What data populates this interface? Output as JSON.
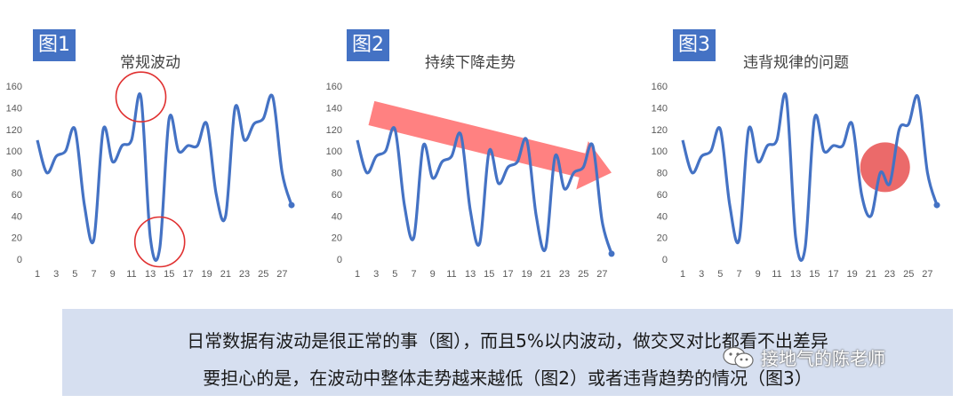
{
  "chart_data": [
    {
      "type": "line",
      "label": "图1",
      "title": "常规波动",
      "categories": [
        1,
        2,
        3,
        4,
        5,
        6,
        7,
        8,
        9,
        10,
        11,
        12,
        13,
        14,
        15,
        16,
        17,
        18,
        19,
        20,
        21,
        22,
        23,
        24,
        25,
        26,
        27,
        28
      ],
      "x_tick_labels": [
        "1",
        "3",
        "5",
        "7",
        "9",
        "11",
        "13",
        "15",
        "17",
        "19",
        "21",
        "23",
        "25",
        "27"
      ],
      "y_ticks": [
        0,
        20,
        40,
        60,
        80,
        100,
        120,
        140,
        160
      ],
      "ylim": [
        0,
        160
      ],
      "series": [
        {
          "values": [
            110,
            80,
            95,
            100,
            120,
            50,
            18,
            120,
            90,
            105,
            110,
            150,
            20,
            10,
            130,
            100,
            105,
            105,
            125,
            60,
            40,
            140,
            110,
            125,
            130,
            150,
            80,
            50
          ]
        }
      ],
      "color": "#4472c4",
      "annotations": [
        {
          "shape": "circle",
          "at_x": 12,
          "at_y": 150,
          "color": "#e03030"
        },
        {
          "shape": "circle",
          "at_x": 14,
          "at_y": 16,
          "color": "#e03030"
        }
      ]
    },
    {
      "type": "line",
      "label": "图2",
      "title": "持续下降走势",
      "categories": [
        1,
        2,
        3,
        4,
        5,
        6,
        7,
        8,
        9,
        10,
        11,
        12,
        13,
        14,
        15,
        16,
        17,
        18,
        19,
        20,
        21,
        22,
        23,
        24,
        25,
        26,
        27,
        28
      ],
      "x_tick_labels": [
        "1",
        "3",
        "5",
        "7",
        "9",
        "11",
        "13",
        "15",
        "17",
        "19",
        "21",
        "23",
        "25",
        "27"
      ],
      "y_ticks": [
        0,
        20,
        40,
        60,
        80,
        100,
        120,
        140,
        160
      ],
      "ylim": [
        0,
        160
      ],
      "series": [
        {
          "values": [
            110,
            80,
            95,
            100,
            120,
            50,
            20,
            105,
            75,
            90,
            95,
            115,
            45,
            15,
            100,
            70,
            85,
            90,
            110,
            40,
            10,
            95,
            65,
            80,
            85,
            105,
            35,
            5
          ]
        }
      ],
      "color": "#4472c4",
      "annotations": [
        {
          "shape": "arrow",
          "from_x": 2.5,
          "from_y": 135,
          "to_x": 28,
          "to_y": 80,
          "color": "#ff6b6b"
        }
      ]
    },
    {
      "type": "line",
      "label": "图3",
      "title": "违背规律的问题",
      "categories": [
        1,
        2,
        3,
        4,
        5,
        6,
        7,
        8,
        9,
        10,
        11,
        12,
        13,
        14,
        15,
        16,
        17,
        18,
        19,
        20,
        21,
        22,
        23,
        24,
        25,
        26,
        27,
        28
      ],
      "x_tick_labels": [
        "1",
        "3",
        "5",
        "7",
        "9",
        "11",
        "13",
        "15",
        "17",
        "19",
        "21",
        "23",
        "25",
        "27"
      ],
      "y_ticks": [
        0,
        20,
        40,
        60,
        80,
        100,
        120,
        140,
        160
      ],
      "ylim": [
        0,
        160
      ],
      "series": [
        {
          "values": [
            110,
            80,
            95,
            100,
            120,
            50,
            18,
            120,
            90,
            105,
            110,
            150,
            20,
            10,
            130,
            100,
            105,
            105,
            125,
            60,
            40,
            80,
            70,
            120,
            125,
            150,
            80,
            50
          ]
        }
      ],
      "color": "#4472c4",
      "annotations": [
        {
          "shape": "filled-circle",
          "at_x": 22.5,
          "at_y": 85,
          "color": "#e85050"
        }
      ]
    }
  ],
  "caption": {
    "line1": "日常数据有波动是很正常的事（图），而且5%以内波动，做交叉对比都看不出差异",
    "line2": "要担心的是，在波动中整体走势越来越低（图2）或者违背趋势的情况（图3）"
  },
  "watermark": {
    "text": "接地气的陈老师",
    "icon": "wechat-icon"
  }
}
